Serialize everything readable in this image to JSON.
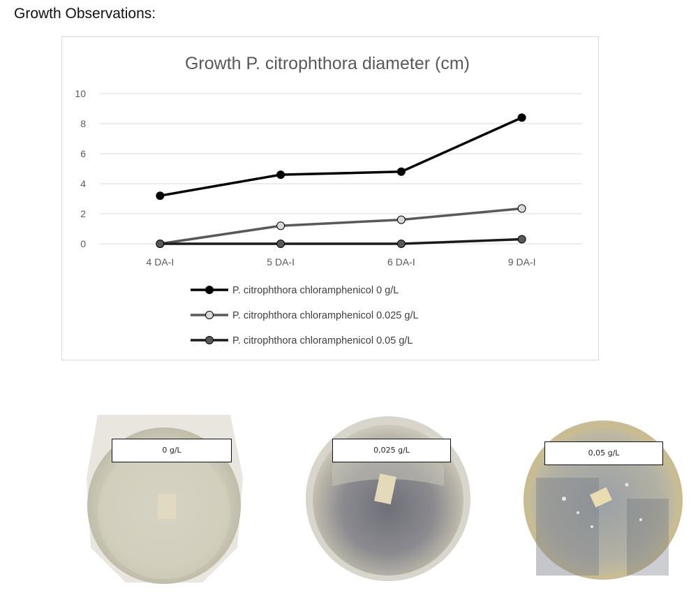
{
  "page": {
    "heading": "Growth Observations:"
  },
  "chart_data": {
    "type": "line",
    "title": "Growth P. citrophthora diameter (cm)",
    "xlabel": "",
    "ylabel": "",
    "categories": [
      "4 DA-I",
      "5 DA-I",
      "6 DA-I",
      "9 DA-I"
    ],
    "ylim": [
      0,
      10
    ],
    "yticks": [
      0,
      2,
      4,
      6,
      8,
      10
    ],
    "grid": true,
    "legend_position": "bottom",
    "series": [
      {
        "name": "P. citrophthora chloramphenicol 0 g/L",
        "values": [
          3.2,
          4.6,
          4.8,
          8.4
        ],
        "line_color": "#000000",
        "marker_fill": "#000000"
      },
      {
        "name": "P. citrophthora chloramphenicol 0.025 g/L",
        "values": [
          0.0,
          1.2,
          1.6,
          2.35
        ],
        "line_color": "#595959",
        "marker_fill": "#d9d9d9"
      },
      {
        "name": "P. citrophthora chloramphenicol 0.05 g/L",
        "values": [
          0.0,
          0.0,
          0.0,
          0.3
        ],
        "line_color": "#1a1a1a",
        "marker_fill": "#595959"
      }
    ]
  },
  "plates": [
    {
      "label": "0 g/L"
    },
    {
      "label": "0,025 g/L"
    },
    {
      "label": "0,05 g/L"
    }
  ]
}
